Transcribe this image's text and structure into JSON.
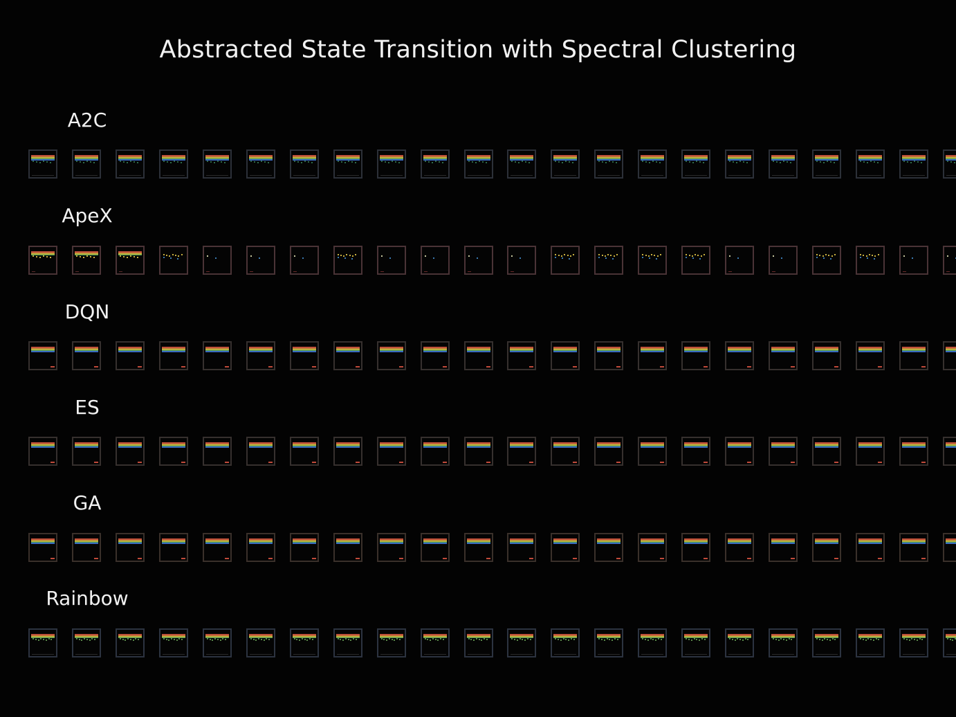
{
  "title": "Abstracted State Transition with Spectral Clustering",
  "rows": [
    {
      "label": "A2C",
      "pattern": "breakout-play",
      "frame_color": "#2c3038",
      "frames": 22
    },
    {
      "label": "ApeX",
      "pattern": "apex-mixed",
      "frame_color": "#4a3336",
      "frames": 22
    },
    {
      "label": "DQN",
      "pattern": "breakout-start",
      "frame_color": "#36302e",
      "frames": 22
    },
    {
      "label": "ES",
      "pattern": "breakout-start",
      "frame_color": "#36302e",
      "frames": 22
    },
    {
      "label": "GA",
      "pattern": "breakout-start",
      "frame_color": "#3a302a",
      "frames": 22
    },
    {
      "label": "Rainbow",
      "pattern": "rainbow-play",
      "frame_color": "#2c3340",
      "frames": 22
    }
  ],
  "colors": {
    "background": "#030303",
    "brick_red": "#c0503a",
    "brick_orange": "#c8803a",
    "brick_yellow": "#b8b040",
    "brick_green": "#4aa05a",
    "brick_blue": "#3a6ac0",
    "paddle": "#c04a3a"
  }
}
